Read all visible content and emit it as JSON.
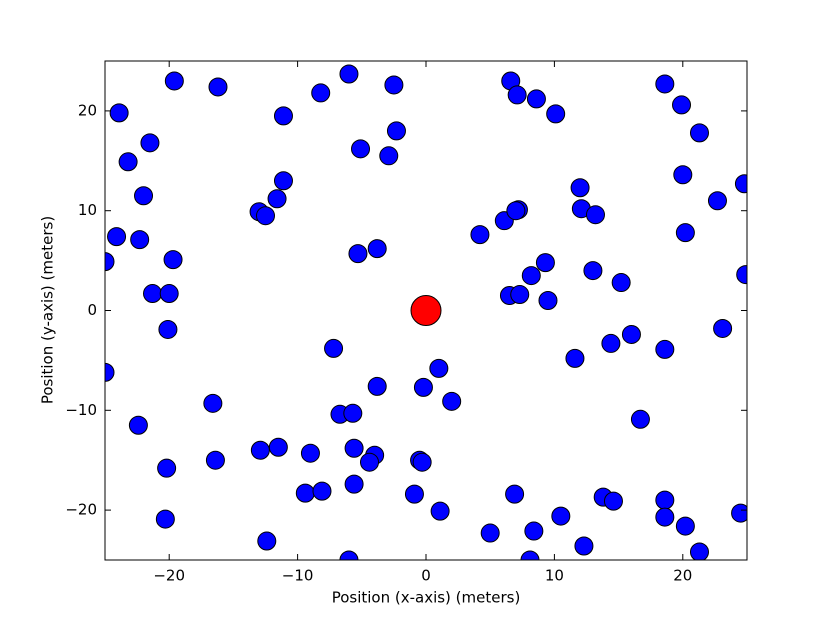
{
  "chart_data": {
    "type": "scatter",
    "xlabel": "Position (x-axis) (meters)",
    "ylabel": "Position (y-axis) (meters)",
    "xlim": [
      -25,
      25
    ],
    "ylim": [
      -25,
      25
    ],
    "xticks": [
      {
        "value": -20,
        "label": "−20"
      },
      {
        "value": -10,
        "label": "−10"
      },
      0,
      10,
      20
    ],
    "yticks": [
      {
        "value": -20,
        "label": "−20"
      },
      {
        "value": -10,
        "label": "−10"
      },
      0,
      10,
      20
    ],
    "series": [
      {
        "color": "#0000ff",
        "x": [
          -19.6,
          -16.2,
          -23.9,
          -23.2,
          -21.5,
          -22.0,
          -24.1,
          -22.3,
          -25.0,
          -19.7,
          -21.3,
          -20.0,
          -20.1,
          -25.0,
          -22.4,
          -20.2,
          -20.3,
          -16.6,
          -16.4,
          -12.4,
          -12.9,
          -11.5,
          -11.1,
          -11.1,
          -11.6,
          -13.0,
          -12.5,
          -8.2,
          -6.0,
          -2.5,
          -5.1,
          -2.3,
          -2.9,
          -5.3,
          -3.8,
          -7.2,
          -3.8,
          -6.7,
          -5.7,
          -5.6,
          -4.0,
          -4.4,
          -9.0,
          -9.4,
          -8.1,
          -5.6,
          -6.0,
          -0.9,
          -0.5,
          -0.3,
          -0.2,
          1.0,
          2.0,
          1.1,
          5.0,
          6.9,
          8.1,
          8.4,
          10.5,
          12.3,
          13.8,
          14.6,
          18.6,
          18.6,
          20.2,
          21.3,
          24.5,
          16.7,
          11.6,
          14.4,
          16.0,
          18.6,
          23.1,
          15.2,
          13.0,
          9.3,
          8.2,
          9.5,
          6.5,
          7.3,
          4.2,
          6.1,
          7.2,
          7.0,
          12.0,
          12.1,
          13.2,
          6.6,
          7.1,
          8.6,
          10.1,
          18.6,
          19.9,
          21.3,
          20.0,
          22.7,
          24.8,
          20.2,
          24.9
        ],
        "y": [
          23.0,
          22.4,
          19.8,
          14.9,
          16.8,
          11.5,
          7.4,
          7.1,
          4.9,
          5.1,
          1.7,
          1.7,
          -1.9,
          -6.2,
          -11.5,
          -15.8,
          -20.9,
          -9.3,
          -15.0,
          -23.1,
          -14.0,
          -13.7,
          19.5,
          13.0,
          11.2,
          9.9,
          9.5,
          21.8,
          23.7,
          22.6,
          16.2,
          18.0,
          15.5,
          5.7,
          6.2,
          -3.8,
          -7.6,
          -10.4,
          -10.3,
          -13.8,
          -14.5,
          -15.2,
          -14.3,
          -18.3,
          -18.1,
          -17.4,
          -25.0,
          -18.4,
          -15.0,
          -15.2,
          -7.7,
          -5.8,
          -9.1,
          -20.1,
          -22.3,
          -18.4,
          -25.0,
          -22.1,
          -20.6,
          -23.6,
          -18.7,
          -19.1,
          -19.0,
          -20.7,
          -21.6,
          -24.2,
          -20.3,
          -10.9,
          -4.8,
          -3.3,
          -2.4,
          -3.9,
          -1.8,
          2.8,
          4.0,
          4.8,
          3.5,
          1.0,
          1.5,
          1.6,
          7.6,
          9.0,
          10.1,
          10.0,
          12.3,
          10.2,
          9.6,
          23.0,
          21.6,
          21.2,
          19.7,
          22.7,
          20.6,
          17.8,
          13.6,
          11.0,
          12.7,
          7.8,
          3.6
        ]
      },
      {
        "color": "#ff0000",
        "x": [
          0
        ],
        "y": [
          0
        ]
      }
    ]
  }
}
